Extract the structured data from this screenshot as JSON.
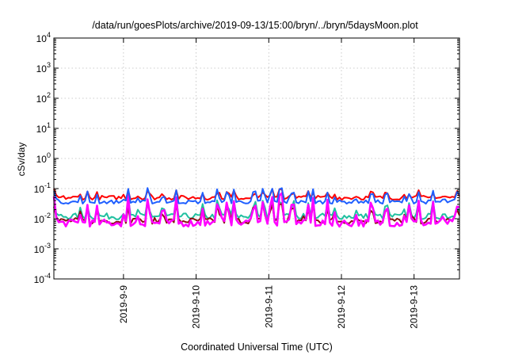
{
  "chart_data": {
    "type": "line",
    "title": "/data/run/goesPlots/archive/2019-09-13/15:00/bryn/../bryn/5daysMoon.plot",
    "xlabel": "Coordinated Universal Time (UTC)",
    "ylabel": "cSv/day",
    "y_scale": "log",
    "ylim": [
      0.0001,
      10000
    ],
    "y_ticks": [
      {
        "value": 0.0001,
        "base": "10",
        "exp": "-4"
      },
      {
        "value": 0.001,
        "base": "10",
        "exp": "-3"
      },
      {
        "value": 0.01,
        "base": "10",
        "exp": "-2"
      },
      {
        "value": 0.1,
        "base": "10",
        "exp": "-1"
      },
      {
        "value": 1,
        "base": "10",
        "exp": "0"
      },
      {
        "value": 10,
        "base": "10",
        "exp": "1"
      },
      {
        "value": 100,
        "base": "10",
        "exp": "2"
      },
      {
        "value": 1000,
        "base": "10",
        "exp": "3"
      },
      {
        "value": 10000,
        "base": "10",
        "exp": "4"
      }
    ],
    "xlim": [
      "2019-09-08 01:00",
      "2019-09-13 15:00"
    ],
    "x_ticks": [
      {
        "value": "2019-09-09 00:00",
        "label": "2019-9-9"
      },
      {
        "value": "2019-09-10 00:00",
        "label": "2019-9-10"
      },
      {
        "value": "2019-09-11 00:00",
        "label": "2019-9-11"
      },
      {
        "value": "2019-09-12 00:00",
        "label": "2019-9-12"
      },
      {
        "value": "2019-09-13 00:00",
        "label": "2019-9-13"
      }
    ],
    "grid": true,
    "series": [
      {
        "color": "#ff0000",
        "base": 0.05,
        "spread": 0.35,
        "spike": 0.25
      },
      {
        "color": "#1f5fff",
        "base": 0.036,
        "spread": 0.3,
        "spike": 0.45
      },
      {
        "color": "#20c0a0",
        "base": 0.012,
        "spread": 0.5,
        "spike": 0.55
      },
      {
        "color": "#8b1010",
        "base": 0.0085,
        "spread": 0.5,
        "spike": 0.6
      },
      {
        "color": "#ff00ff",
        "base": 0.0072,
        "spread": 0.6,
        "spike": 0.9
      }
    ]
  }
}
